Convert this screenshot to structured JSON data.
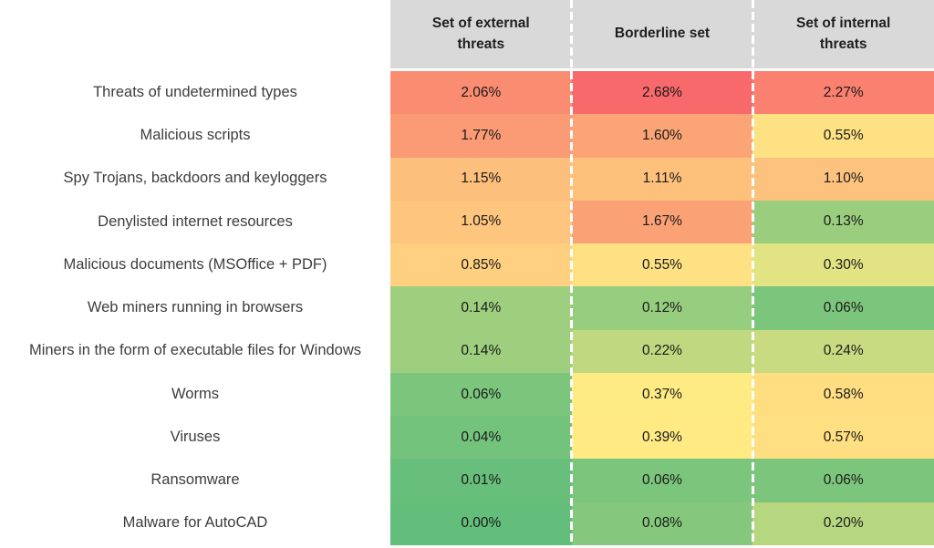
{
  "chart_data": {
    "type": "heatmap",
    "columns": [
      "Set of external threats",
      "Borderline set",
      "Set of internal threats"
    ],
    "rows": [
      {
        "label": "Threats of undetermined types",
        "values": [
          "2.06%",
          "2.68%",
          "2.27%"
        ],
        "colors": [
          "#FA8C72",
          "#F8696B",
          "#FA8070"
        ]
      },
      {
        "label": "Malicious scripts",
        "values": [
          "1.77%",
          "1.60%",
          "0.55%"
        ],
        "colors": [
          "#FB9B75",
          "#FBA576",
          "#FEE182"
        ]
      },
      {
        "label": "Spy Trojans, backdoors and keyloggers",
        "values": [
          "1.15%",
          "1.11%",
          "1.10%"
        ],
        "colors": [
          "#FDBF7C",
          "#FDC17C",
          "#FDC27D"
        ]
      },
      {
        "label": "Denylisted internet resources",
        "values": [
          "1.05%",
          "1.67%",
          "0.13%"
        ],
        "colors": [
          "#FDC57D",
          "#FBA176",
          "#9ACE7E"
        ]
      },
      {
        "label": "Malicious documents (MSOffice + PDF)",
        "values": [
          "0.85%",
          "0.55%",
          "0.30%"
        ],
        "colors": [
          "#FED07F",
          "#FEE182",
          "#E2E382"
        ]
      },
      {
        "label": "Web miners running in browsers",
        "values": [
          "0.14%",
          "0.12%",
          "0.06%"
        ],
        "colors": [
          "#9ECF7E",
          "#96CD7E",
          "#7CC57C"
        ]
      },
      {
        "label": "Miners in the form of executable files for Windows",
        "values": [
          "0.14%",
          "0.22%",
          "0.24%"
        ],
        "colors": [
          "#9ECF7E",
          "#C0D980",
          "#C8DB81"
        ]
      },
      {
        "label": "Worms",
        "values": [
          "0.06%",
          "0.37%",
          "0.58%"
        ],
        "colors": [
          "#7CC57C",
          "#FFEB84",
          "#FEDE81"
        ]
      },
      {
        "label": "Viruses",
        "values": [
          "0.04%",
          "0.39%",
          "0.57%"
        ],
        "colors": [
          "#74C37C",
          "#FFEA84",
          "#FEDF82"
        ]
      },
      {
        "label": "Ransomware",
        "values": [
          "0.01%",
          "0.06%",
          "0.06%"
        ],
        "colors": [
          "#67BF7B",
          "#7CC57C",
          "#7CC57C"
        ]
      },
      {
        "label": "Malware for AutoCAD",
        "values": [
          "0.00%",
          "0.08%",
          "0.20%"
        ],
        "colors": [
          "#63BE7B",
          "#85C87D",
          "#B7D680"
        ]
      }
    ],
    "color_scale": {
      "type": "3-color-scale",
      "min_color": "#63BE7B",
      "mid_color": "#FFEB84",
      "max_color": "#F8696B",
      "min_value": 0.0,
      "mid_value": 0.37,
      "max_value": 2.68
    },
    "legend_position": "none",
    "grid": "dashed-white-column-separators"
  },
  "style": {
    "header_bg": "#D9D9D9",
    "header_text_color": "#1F1F1F",
    "row_label_color": "#3D3D3D",
    "value_text_color": "#1A1A1A",
    "separator_color": "#FFFFFF",
    "background": "#FFFFFF"
  }
}
